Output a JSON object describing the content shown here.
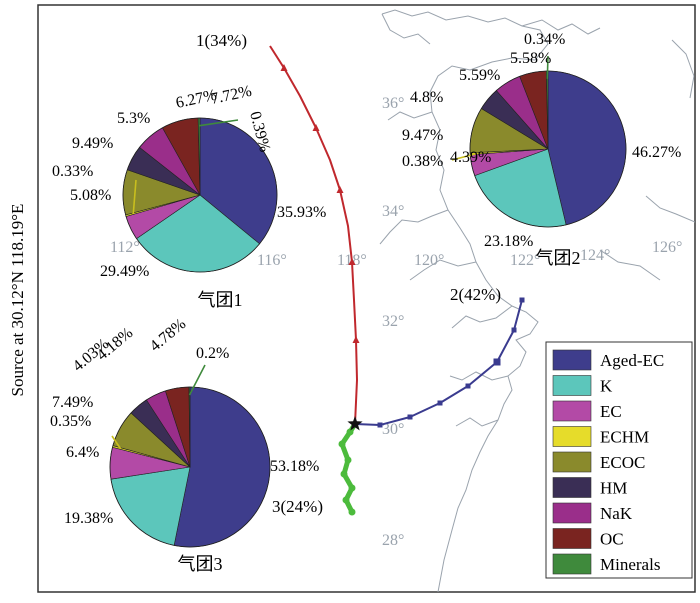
{
  "figure": {
    "ylabel": "Source at 30.12°N  118.19°E"
  },
  "map": {
    "lon_labels": [
      "112°",
      "116°",
      "118°",
      "120°",
      "122°",
      "124°",
      "126°"
    ],
    "lat_labels": [
      "36°",
      "34°",
      "32°",
      "30°",
      "28°"
    ]
  },
  "trajectories": [
    {
      "label": "1(34%)",
      "color": "#c0282d",
      "marker": "triangle"
    },
    {
      "label": "2(42%)",
      "color": "#3a3b8f",
      "marker": "square"
    },
    {
      "label": "3(24%)",
      "color": "#4cbb3c",
      "marker": "circle"
    }
  ],
  "legend": {
    "items": [
      {
        "label": "Aged-EC",
        "color": "#3e3d8c"
      },
      {
        "label": "K",
        "color": "#5cc6bb"
      },
      {
        "label": "EC",
        "color": "#b34aa6"
      },
      {
        "label": "ECHM",
        "color": "#e6dc2a"
      },
      {
        "label": "ECOC",
        "color": "#8a8a2c"
      },
      {
        "label": "HM",
        "color": "#3a2e55"
      },
      {
        "label": "NaK",
        "color": "#9a2e8a"
      },
      {
        "label": "OC",
        "color": "#7a2420"
      },
      {
        "label": "Minerals",
        "color": "#3f8a3c"
      }
    ]
  },
  "chart_data": [
    {
      "type": "pie",
      "title": "气团1",
      "categories": [
        "Aged-EC",
        "K",
        "EC",
        "ECHM",
        "ECOC",
        "HM",
        "NaK",
        "OC",
        "Minerals"
      ],
      "values": [
        35.93,
        29.49,
        5.08,
        0.33,
        9.49,
        5.3,
        6.27,
        7.72,
        0.39
      ],
      "labels": [
        "35.93%",
        "29.49%",
        "5.08%",
        "0.33%",
        "9.49%",
        "5.3%",
        "6.27%",
        "7.72%",
        "0.39%"
      ]
    },
    {
      "type": "pie",
      "title": "气团2",
      "categories": [
        "Aged-EC",
        "K",
        "EC",
        "ECHM",
        "ECOC",
        "HM",
        "NaK",
        "OC",
        "Minerals"
      ],
      "values": [
        46.27,
        23.18,
        4.39,
        0.38,
        9.47,
        4.8,
        5.59,
        5.58,
        0.34
      ],
      "labels": [
        "46.27%",
        "23.18%",
        "4.39%",
        "0.38%",
        "9.47%",
        "4.8%",
        "5.59%",
        "5.58%",
        "0.34%"
      ]
    },
    {
      "type": "pie",
      "title": "气团3",
      "categories": [
        "Aged-EC",
        "K",
        "EC",
        "ECHM",
        "ECOC",
        "HM",
        "NaK",
        "OC",
        "Minerals"
      ],
      "values": [
        53.18,
        19.38,
        6.4,
        0.35,
        7.49,
        4.03,
        4.18,
        4.78,
        0.2
      ],
      "labels": [
        "53.18%",
        "19.38%",
        "6.4%",
        "0.35%",
        "7.49%",
        "4.03%",
        "4.18%",
        "4.78%",
        "0.2%"
      ]
    }
  ]
}
